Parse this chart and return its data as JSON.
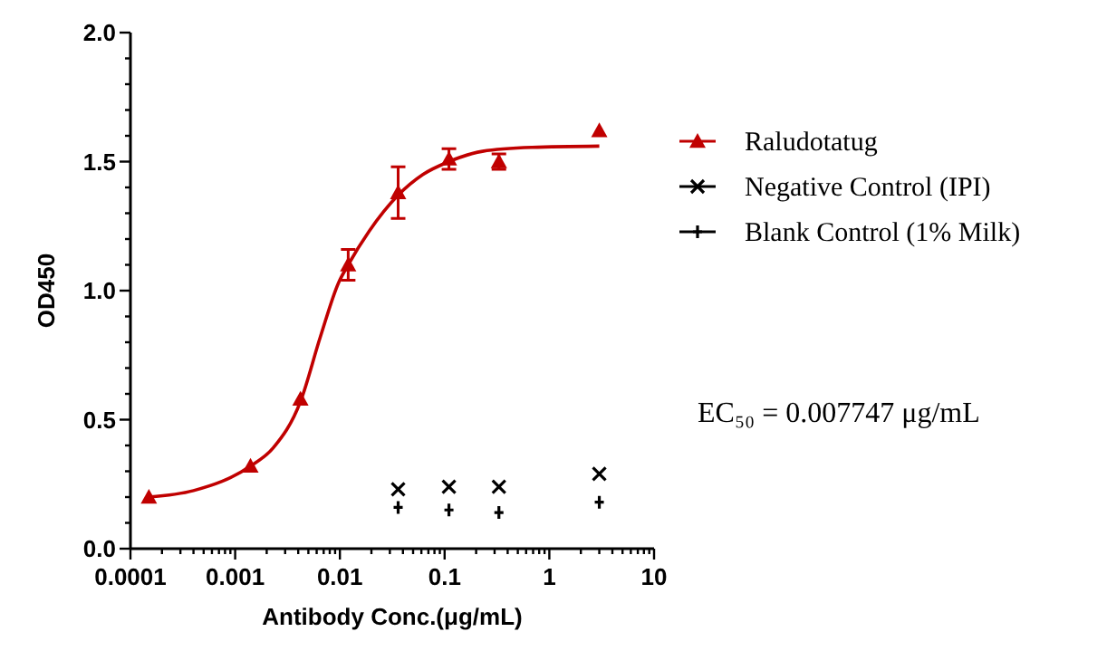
{
  "chart_data": {
    "type": "scatter",
    "xlabel": "Antibody Conc.(μg/mL)",
    "ylabel": "OD450",
    "log": "x",
    "xlim": [
      0.0001,
      10
    ],
    "ylim": [
      0,
      2
    ],
    "xticks": [
      0.0001,
      0.001,
      0.01,
      0.1,
      1,
      10,
      {
        "value": 0.0002,
        "label": null
      },
      {
        "value": 0.0003,
        "label": null
      },
      {
        "value": 0.0004,
        "label": null
      },
      {
        "value": 0.0005,
        "label": null
      },
      {
        "value": 0.0006,
        "label": null
      },
      {
        "value": 0.0007,
        "label": null
      },
      {
        "value": 0.0008,
        "label": null
      },
      {
        "value": 0.0009,
        "label": null
      },
      {
        "value": 0.002,
        "label": null
      },
      {
        "value": 0.003,
        "label": null
      },
      {
        "value": 0.004,
        "label": null
      },
      {
        "value": 0.005,
        "label": null
      },
      {
        "value": 0.006,
        "label": null
      },
      {
        "value": 0.007,
        "label": null
      },
      {
        "value": 0.008,
        "label": null
      },
      {
        "value": 0.009,
        "label": null
      },
      {
        "value": 0.02,
        "label": null
      },
      {
        "value": 0.03,
        "label": null
      },
      {
        "value": 0.04,
        "label": null
      },
      {
        "value": 0.05,
        "label": null
      },
      {
        "value": 0.06,
        "label": null
      },
      {
        "value": 0.07,
        "label": null
      },
      {
        "value": 0.08,
        "label": null
      },
      {
        "value": 0.09,
        "label": null
      },
      {
        "value": 0.2,
        "label": null
      },
      {
        "value": 0.3,
        "label": null
      },
      {
        "value": 0.4,
        "label": null
      },
      {
        "value": 0.5,
        "label": null
      },
      {
        "value": 0.6,
        "label": null
      },
      {
        "value": 0.7,
        "label": null
      },
      {
        "value": 0.8,
        "label": null
      },
      {
        "value": 0.9,
        "label": null
      },
      {
        "value": 2,
        "label": null
      },
      {
        "value": 3,
        "label": null
      },
      {
        "value": 4,
        "label": null
      },
      {
        "value": 5,
        "label": null
      },
      {
        "value": 6,
        "label": null
      },
      {
        "value": 7,
        "label": null
      },
      {
        "value": 8,
        "label": null
      },
      {
        "value": 9,
        "label": null
      }
    ],
    "yticks": [
      {
        "value": 0,
        "label": "0.0"
      },
      {
        "value": 0.5,
        "label": "0.5"
      },
      {
        "value": 1,
        "label": "1.0"
      },
      {
        "value": 1.5,
        "label": "1.5"
      },
      {
        "value": 2,
        "label": "2.0"
      },
      {
        "value": 0.1,
        "label": null
      },
      {
        "value": 0.2,
        "label": null
      },
      {
        "value": 0.3,
        "label": null
      },
      {
        "value": 0.4,
        "label": null
      },
      {
        "value": 0.6,
        "label": null
      },
      {
        "value": 0.7,
        "label": null
      },
      {
        "value": 0.8,
        "label": null
      },
      {
        "value": 0.9,
        "label": null
      },
      {
        "value": 1.1,
        "label": null
      },
      {
        "value": 1.2,
        "label": null
      },
      {
        "value": 1.3,
        "label": null
      },
      {
        "value": 1.4,
        "label": null
      },
      {
        "value": 1.6,
        "label": null
      },
      {
        "value": 1.7,
        "label": null
      },
      {
        "value": 1.8,
        "label": null
      },
      {
        "value": 1.9,
        "label": null
      }
    ],
    "grid": false,
    "legend": "right",
    "series": [
      {
        "name": "Raludotatug",
        "marker": "triangle",
        "color": "#c00000",
        "x": [
          0.00015,
          0.0014,
          0.0042,
          0.012,
          0.036,
          0.11,
          0.33,
          3
        ],
        "values": [
          0.2,
          0.32,
          0.58,
          1.1,
          1.38,
          1.51,
          1.5,
          1.62
        ],
        "errors": [
          null,
          null,
          null,
          0.06,
          0.1,
          0.04,
          0.03,
          null
        ]
      },
      {
        "type": "line",
        "color": "#c00000",
        "marker": "none",
        "line_style": "solid",
        "x": [
          0.00015,
          0.0004,
          0.0014,
          0.0023,
          0.0042,
          0.0065,
          0.0097,
          0.012,
          0.019,
          0.036,
          0.062,
          0.11,
          0.23,
          0.68,
          3
        ],
        "values": [
          0.2,
          0.225,
          0.32,
          0.39,
          0.57,
          0.82,
          1.03,
          1.1,
          1.23,
          1.37,
          1.45,
          1.5,
          1.54,
          1.555,
          1.56
        ]
      },
      {
        "name": "Negative Control (IPI)",
        "marker": "cross",
        "color": "#000000",
        "x": [
          0.036,
          0.11,
          0.33,
          3
        ],
        "values": [
          0.23,
          0.24,
          0.24,
          0.29
        ]
      },
      {
        "name": "Blank Control (1% Milk)",
        "color": "#000000",
        "x": [
          0.036,
          0.11,
          0.33,
          3
        ],
        "values": [
          0.16,
          0.15,
          0.14,
          0.18
        ]
      }
    ],
    "annotations": [
      "EC₅₀ = 0.007747 μg/mL"
    ]
  }
}
